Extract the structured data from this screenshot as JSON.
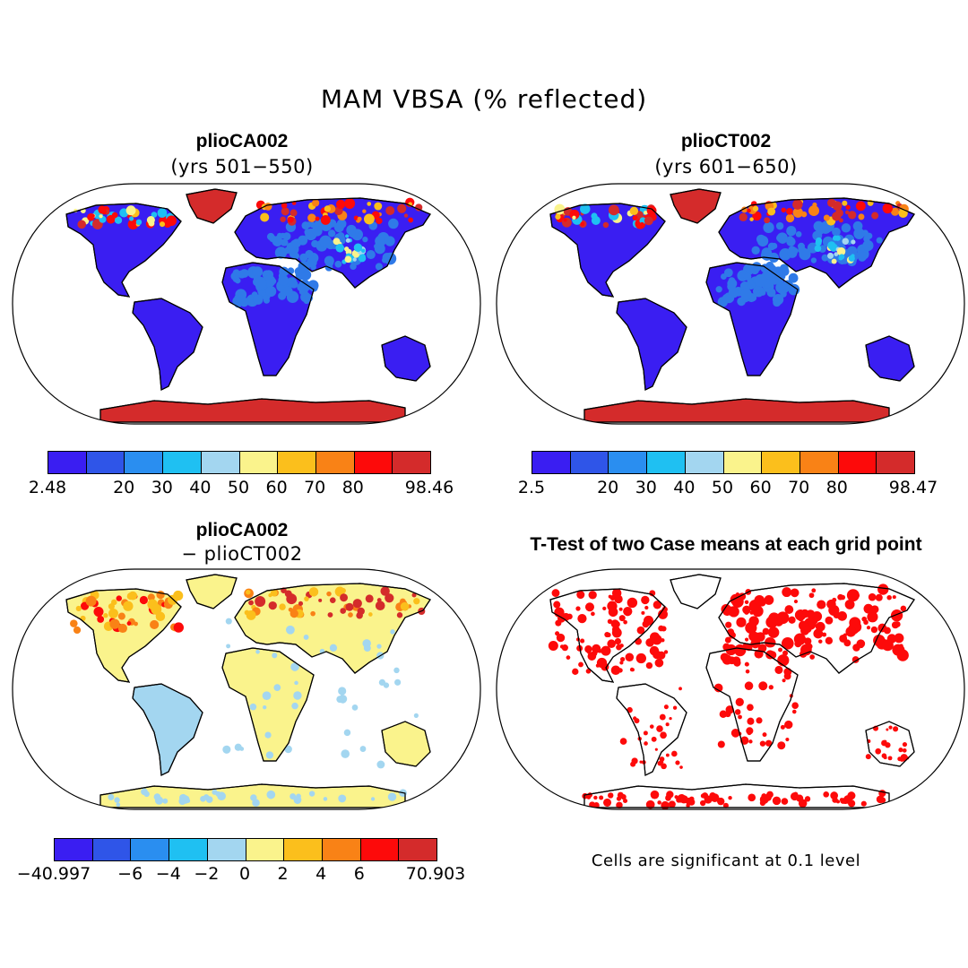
{
  "title": "MAM VBSA (% reflected)",
  "panels": [
    {
      "title": "plioCA002",
      "subtitle": "(yrs 501−550)",
      "colorbar": {
        "colors": [
          "#3a1ef2",
          "#2f55e8",
          "#2a8ef0",
          "#1fc0f2",
          "#a3d6f0",
          "#faf38c",
          "#fbbf1c",
          "#f98216",
          "#fd0a0a",
          "#d42b2b"
        ],
        "labels": [
          "2.48",
          "20",
          "30",
          "40",
          "50",
          "60",
          "70",
          "80",
          "98.46"
        ]
      }
    },
    {
      "title": "plioCT002",
      "subtitle": "(yrs 601−650)",
      "colorbar": {
        "colors": [
          "#3a1ef2",
          "#2f55e8",
          "#2a8ef0",
          "#1fc0f2",
          "#a3d6f0",
          "#faf38c",
          "#fbbf1c",
          "#f98216",
          "#fd0a0a",
          "#d42b2b"
        ],
        "labels": [
          "2.5",
          "20",
          "30",
          "40",
          "50",
          "60",
          "70",
          "80",
          "98.47"
        ]
      }
    },
    {
      "title": "plioCA002",
      "subtitle": "− plioCT002",
      "colorbar": {
        "colors": [
          "#3a1ef2",
          "#2f55e8",
          "#2a8ef0",
          "#1fc0f2",
          "#a3d6f0",
          "#faf38c",
          "#fbbf1c",
          "#f98216",
          "#fd0a0a",
          "#d42b2b"
        ],
        "labels": [
          "−40.997",
          "−6",
          "−4",
          "−2",
          "0",
          "2",
          "4",
          "6",
          "70.903"
        ]
      }
    },
    {
      "title": "T-Test of two Case means at each grid point",
      "note": "Cells are significant at 0.1 level"
    }
  ],
  "colors": {
    "land_low": "#3a1ef2",
    "land_mid": "#2f7ae8",
    "ice": "#d42b2b",
    "diff_pos": "#faf38c",
    "diff_neg": "#a3d6f0",
    "diff_high": "#fbbf1c",
    "signif": "#fd0a0a"
  }
}
